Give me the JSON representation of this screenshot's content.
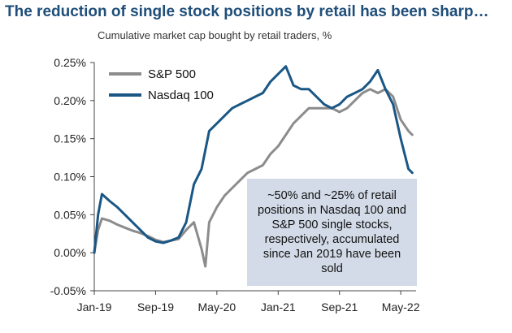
{
  "chart_data": {
    "type": "line",
    "title": "The reduction of single stock positions by retail has been sharp…",
    "subtitle": "Cumulative market cap bought by retail traders, %",
    "xlabel": "",
    "ylabel": "",
    "x_ticks": [
      "Jan-19",
      "Sep-19",
      "May-20",
      "Jan-21",
      "Sep-21",
      "May-22"
    ],
    "y_ticks": [
      "0.25%",
      "0.20%",
      "0.15%",
      "0.10%",
      "0.05%",
      "0.00%",
      "-0.05%"
    ],
    "ylim": [
      -0.05,
      0.25
    ],
    "x_unit": "months since Jan 2019",
    "xlim": [
      0,
      42
    ],
    "legend": [
      "S&P 500",
      "Nasdaq 100"
    ],
    "series": [
      {
        "name": "S&P 500",
        "color": "#8c8c8c",
        "points": [
          [
            0,
            0.0
          ],
          [
            0.5,
            0.03
          ],
          [
            1,
            0.045
          ],
          [
            2,
            0.042
          ],
          [
            3,
            0.037
          ],
          [
            4,
            0.033
          ],
          [
            5,
            0.029
          ],
          [
            6,
            0.026
          ],
          [
            7,
            0.022
          ],
          [
            8,
            0.017
          ],
          [
            9,
            0.014
          ],
          [
            10,
            0.016
          ],
          [
            11,
            0.018
          ],
          [
            12,
            0.03
          ],
          [
            13,
            0.04
          ],
          [
            14,
            0.005
          ],
          [
            14.5,
            -0.018
          ],
          [
            15,
            0.04
          ],
          [
            16,
            0.06
          ],
          [
            17,
            0.075
          ],
          [
            18,
            0.085
          ],
          [
            19,
            0.095
          ],
          [
            20,
            0.105
          ],
          [
            21,
            0.11
          ],
          [
            22,
            0.115
          ],
          [
            23,
            0.13
          ],
          [
            24,
            0.14
          ],
          [
            25,
            0.155
          ],
          [
            26,
            0.17
          ],
          [
            27,
            0.18
          ],
          [
            28,
            0.19
          ],
          [
            29,
            0.19
          ],
          [
            30,
            0.19
          ],
          [
            31,
            0.19
          ],
          [
            32,
            0.185
          ],
          [
            33,
            0.19
          ],
          [
            34,
            0.2
          ],
          [
            35,
            0.21
          ],
          [
            36,
            0.215
          ],
          [
            37,
            0.21
          ],
          [
            38,
            0.215
          ],
          [
            39,
            0.205
          ],
          [
            40,
            0.175
          ],
          [
            41,
            0.16
          ],
          [
            41.5,
            0.155
          ]
        ]
      },
      {
        "name": "Nasdaq 100",
        "color": "#1a5785",
        "points": [
          [
            0,
            0.0
          ],
          [
            0.5,
            0.05
          ],
          [
            1,
            0.077
          ],
          [
            2,
            0.068
          ],
          [
            3,
            0.06
          ],
          [
            4,
            0.05
          ],
          [
            5,
            0.04
          ],
          [
            6,
            0.03
          ],
          [
            7,
            0.02
          ],
          [
            8,
            0.015
          ],
          [
            9,
            0.013
          ],
          [
            10,
            0.016
          ],
          [
            11,
            0.02
          ],
          [
            12,
            0.04
          ],
          [
            13,
            0.09
          ],
          [
            14,
            0.11
          ],
          [
            15,
            0.16
          ],
          [
            16,
            0.17
          ],
          [
            17,
            0.18
          ],
          [
            18,
            0.19
          ],
          [
            19,
            0.195
          ],
          [
            20,
            0.2
          ],
          [
            21,
            0.205
          ],
          [
            22,
            0.21
          ],
          [
            23,
            0.225
          ],
          [
            24,
            0.235
          ],
          [
            25,
            0.245
          ],
          [
            26,
            0.22
          ],
          [
            27,
            0.215
          ],
          [
            28,
            0.215
          ],
          [
            29,
            0.205
          ],
          [
            30,
            0.195
          ],
          [
            31,
            0.19
          ],
          [
            32,
            0.195
          ],
          [
            33,
            0.205
          ],
          [
            34,
            0.21
          ],
          [
            35,
            0.215
          ],
          [
            36,
            0.225
          ],
          [
            37,
            0.24
          ],
          [
            38,
            0.215
          ],
          [
            39,
            0.195
          ],
          [
            40,
            0.15
          ],
          [
            41,
            0.11
          ],
          [
            41.5,
            0.105
          ]
        ]
      }
    ],
    "annotation": "~50% and ~25% of retail positions in Nasdaq 100 and S&P 500 single stocks, respectively, accumulated since Jan 2019 have been sold"
  }
}
